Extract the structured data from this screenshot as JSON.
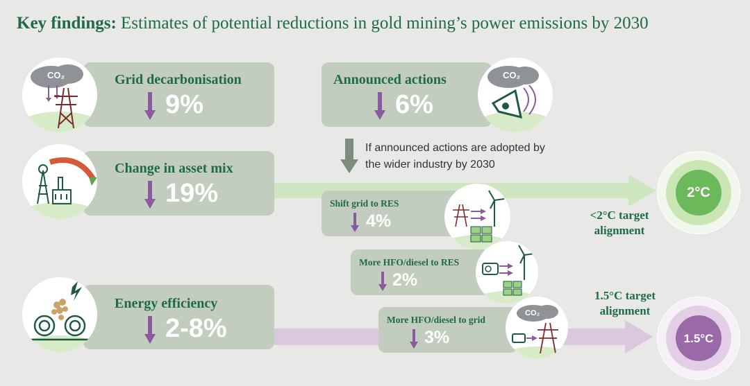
{
  "title": {
    "bold": "Key findings:",
    "rest": "Estimates of potential reductions in gold mining’s power emissions by 2030"
  },
  "cards": {
    "grid": {
      "label": "Grid decarbonisation",
      "value": "9%"
    },
    "announced": {
      "label": "Announced actions",
      "value": "6%"
    },
    "asset_mix": {
      "label": "Change in asset mix",
      "value": "19%"
    },
    "efficiency": {
      "label": "Energy efficiency",
      "value": "2-8%"
    },
    "shift_grid": {
      "label": "Shift grid to RES",
      "value": "4%"
    },
    "hfo_res": {
      "label": "More HFO/diesel to RES",
      "value": "2%"
    },
    "hfo_grid": {
      "label": "More HFO/diesel to grid",
      "value": "3%"
    }
  },
  "note": {
    "line1": "If announced actions are adopted by",
    "line2": "the wider industry by 2030"
  },
  "targets": {
    "two": {
      "badge": "2°C",
      "line1": "<2°C target",
      "line2": "alignment"
    },
    "one_five": {
      "badge": "1.5°C",
      "line1": "1.5°C target",
      "line2": "alignment"
    }
  },
  "icons": {
    "co2": "CO₂"
  },
  "colors": {
    "green": "#1e6b45",
    "card": "#c2cdbf",
    "purple": "#8a5a9f",
    "arrow_green": "#cfe7c0",
    "arrow_purple": "#d9c8de"
  }
}
